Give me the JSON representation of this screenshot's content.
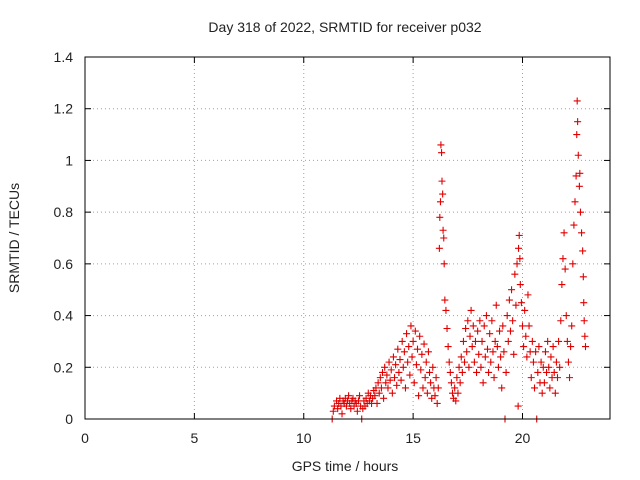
{
  "chart_data": {
    "type": "scatter",
    "title": "Day 318 of 2022, SRMTID for receiver p032",
    "xlabel": "GPS time / hours",
    "ylabel": "SRMTID / TECUs",
    "xlim": [
      0,
      24
    ],
    "ylim": [
      0,
      1.4
    ],
    "x_ticks": [
      "0",
      "5",
      "10",
      "15",
      "20"
    ],
    "y_ticks": [
      "0",
      "0.2",
      "0.4",
      "0.6",
      "0.8",
      "1",
      "1.2",
      "1.4"
    ],
    "grid": true,
    "marker": "+",
    "marker_color": "#e00000",
    "axis_color": "#000000",
    "grid_color": "#a0a0a0",
    "series": [
      {
        "name": "SRMTID",
        "points": [
          [
            11.3,
            0.0
          ],
          [
            11.35,
            0.03
          ],
          [
            11.4,
            0.05
          ],
          [
            11.5,
            0.07
          ],
          [
            11.55,
            0.04
          ],
          [
            11.6,
            0.06
          ],
          [
            11.65,
            0.08
          ],
          [
            11.7,
            0.05
          ],
          [
            11.75,
            0.02
          ],
          [
            11.8,
            0.07
          ],
          [
            11.85,
            0.06
          ],
          [
            11.9,
            0.08
          ],
          [
            11.95,
            0.05
          ],
          [
            12.0,
            0.07
          ],
          [
            12.05,
            0.09
          ],
          [
            12.1,
            0.06
          ],
          [
            12.15,
            0.04
          ],
          [
            12.2,
            0.07
          ],
          [
            12.25,
            0.08
          ],
          [
            12.3,
            0.05
          ],
          [
            12.35,
            0.07
          ],
          [
            12.4,
            0.06
          ],
          [
            12.45,
            0.03
          ],
          [
            12.5,
            0.07
          ],
          [
            12.55,
            0.09
          ],
          [
            12.6,
            0.05
          ],
          [
            12.65,
            0.0
          ],
          [
            12.7,
            0.04
          ],
          [
            12.75,
            0.07
          ],
          [
            12.8,
            0.05
          ],
          [
            12.85,
            0.08
          ],
          [
            12.9,
            0.06
          ],
          [
            12.95,
            0.1
          ],
          [
            13.0,
            0.07
          ],
          [
            13.05,
            0.09
          ],
          [
            13.1,
            0.06
          ],
          [
            13.15,
            0.08
          ],
          [
            13.2,
            0.11
          ],
          [
            13.25,
            0.09
          ],
          [
            13.3,
            0.12
          ],
          [
            13.35,
            0.06
          ],
          [
            13.4,
            0.14
          ],
          [
            13.45,
            0.1
          ],
          [
            13.5,
            0.16
          ],
          [
            13.55,
            0.12
          ],
          [
            13.6,
            0.18
          ],
          [
            13.65,
            0.08
          ],
          [
            13.7,
            0.2
          ],
          [
            13.75,
            0.14
          ],
          [
            13.8,
            0.17
          ],
          [
            13.85,
            0.12
          ],
          [
            13.9,
            0.22
          ],
          [
            13.95,
            0.15
          ],
          [
            14.0,
            0.19
          ],
          [
            14.05,
            0.1
          ],
          [
            14.1,
            0.24
          ],
          [
            14.15,
            0.16
          ],
          [
            14.2,
            0.21
          ],
          [
            14.25,
            0.13
          ],
          [
            14.3,
            0.27
          ],
          [
            14.35,
            0.18
          ],
          [
            14.4,
            0.23
          ],
          [
            14.45,
            0.15
          ],
          [
            14.5,
            0.3
          ],
          [
            14.55,
            0.2
          ],
          [
            14.6,
            0.26
          ],
          [
            14.65,
            0.12
          ],
          [
            14.7,
            0.33
          ],
          [
            14.75,
            0.22
          ],
          [
            14.8,
            0.28
          ],
          [
            14.85,
            0.17
          ],
          [
            14.9,
            0.36
          ],
          [
            14.95,
            0.24
          ],
          [
            15.0,
            0.3
          ],
          [
            15.05,
            0.14
          ],
          [
            15.1,
            0.34
          ],
          [
            15.15,
            0.21
          ],
          [
            15.2,
            0.27
          ],
          [
            15.25,
            0.09
          ],
          [
            15.3,
            0.32
          ],
          [
            15.35,
            0.19
          ],
          [
            15.4,
            0.25
          ],
          [
            15.45,
            0.12
          ],
          [
            15.5,
            0.29
          ],
          [
            15.55,
            0.16
          ],
          [
            15.6,
            0.22
          ],
          [
            15.65,
            0.1
          ],
          [
            15.7,
            0.26
          ],
          [
            15.75,
            0.18
          ],
          [
            15.8,
            0.14
          ],
          [
            15.85,
            0.08
          ],
          [
            15.9,
            0.2
          ],
          [
            15.95,
            0.12
          ],
          [
            16.0,
            0.09
          ],
          [
            16.05,
            0.16
          ],
          [
            16.1,
            0.06
          ],
          [
            16.15,
            0.12
          ],
          [
            16.2,
            0.66
          ],
          [
            16.22,
            0.78
          ],
          [
            16.25,
            0.84
          ],
          [
            16.27,
            1.06
          ],
          [
            16.3,
            1.03
          ],
          [
            16.32,
            0.92
          ],
          [
            16.35,
            0.87
          ],
          [
            16.37,
            0.73
          ],
          [
            16.4,
            0.7
          ],
          [
            16.42,
            0.6
          ],
          [
            16.45,
            0.46
          ],
          [
            16.5,
            0.42
          ],
          [
            16.55,
            0.35
          ],
          [
            16.6,
            0.28
          ],
          [
            16.65,
            0.22
          ],
          [
            16.7,
            0.18
          ],
          [
            16.75,
            0.14
          ],
          [
            16.8,
            0.1
          ],
          [
            16.85,
            0.08
          ],
          [
            16.9,
            0.12
          ],
          [
            16.95,
            0.07
          ],
          [
            17.0,
            0.16
          ],
          [
            17.05,
            0.1
          ],
          [
            17.1,
            0.2
          ],
          [
            17.15,
            0.14
          ],
          [
            17.2,
            0.24
          ],
          [
            17.25,
            0.18
          ],
          [
            17.3,
            0.3
          ],
          [
            17.35,
            0.22
          ],
          [
            17.4,
            0.35
          ],
          [
            17.45,
            0.26
          ],
          [
            17.5,
            0.38
          ],
          [
            17.55,
            0.2
          ],
          [
            17.6,
            0.32
          ],
          [
            17.65,
            0.42
          ],
          [
            17.7,
            0.28
          ],
          [
            17.75,
            0.36
          ],
          [
            17.8,
            0.22
          ],
          [
            17.85,
            0.3
          ],
          [
            17.9,
            0.18
          ],
          [
            17.95,
            0.34
          ],
          [
            18.0,
            0.25
          ],
          [
            18.05,
            0.38
          ],
          [
            18.1,
            0.2
          ],
          [
            18.15,
            0.3
          ],
          [
            18.2,
            0.14
          ],
          [
            18.25,
            0.36
          ],
          [
            18.3,
            0.24
          ],
          [
            18.35,
            0.4
          ],
          [
            18.4,
            0.27
          ],
          [
            18.45,
            0.18
          ],
          [
            18.5,
            0.33
          ],
          [
            18.55,
            0.22
          ],
          [
            18.6,
            0.38
          ],
          [
            18.65,
            0.26
          ],
          [
            18.7,
            0.16
          ],
          [
            18.75,
            0.3
          ],
          [
            18.8,
            0.44
          ],
          [
            18.85,
            0.28
          ],
          [
            18.9,
            0.2
          ],
          [
            18.95,
            0.34
          ],
          [
            19.0,
            0.24
          ],
          [
            19.05,
            0.12
          ],
          [
            19.1,
            0.36
          ],
          [
            19.15,
            0.26
          ],
          [
            19.2,
            0.0
          ],
          [
            19.25,
            0.18
          ],
          [
            19.3,
            0.4
          ],
          [
            19.35,
            0.3
          ],
          [
            19.4,
            0.46
          ],
          [
            19.45,
            0.34
          ],
          [
            19.5,
            0.5
          ],
          [
            19.55,
            0.38
          ],
          [
            19.6,
            0.25
          ],
          [
            19.65,
            0.56
          ],
          [
            19.7,
            0.44
          ],
          [
            19.75,
            0.6
          ],
          [
            19.8,
            0.05
          ],
          [
            19.82,
            0.66
          ],
          [
            19.85,
            0.71
          ],
          [
            19.88,
            0.62
          ],
          [
            19.9,
            0.52
          ],
          [
            19.95,
            0.45
          ],
          [
            20.0,
            0.36
          ],
          [
            20.05,
            0.28
          ],
          [
            20.1,
            0.42
          ],
          [
            20.15,
            0.32
          ],
          [
            20.2,
            0.24
          ],
          [
            20.25,
            0.48
          ],
          [
            20.3,
            0.36
          ],
          [
            20.35,
            0.26
          ],
          [
            20.4,
            0.16
          ],
          [
            20.45,
            0.3
          ],
          [
            20.5,
            0.22
          ],
          [
            20.55,
            0.12
          ],
          [
            20.6,
            0.26
          ],
          [
            20.65,
            0.0
          ],
          [
            20.7,
            0.18
          ],
          [
            20.75,
            0.28
          ],
          [
            20.8,
            0.14
          ],
          [
            20.85,
            0.22
          ],
          [
            20.9,
            0.1
          ],
          [
            20.95,
            0.2
          ],
          [
            21.0,
            0.14
          ],
          [
            21.05,
            0.26
          ],
          [
            21.1,
            0.18
          ],
          [
            21.15,
            0.3
          ],
          [
            21.2,
            0.2
          ],
          [
            21.25,
            0.12
          ],
          [
            21.3,
            0.24
          ],
          [
            21.35,
            0.16
          ],
          [
            21.4,
            0.28
          ],
          [
            21.45,
            0.18
          ],
          [
            21.5,
            0.1
          ],
          [
            21.55,
            0.22
          ],
          [
            21.6,
            0.16
          ],
          [
            21.65,
            0.3
          ],
          [
            21.7,
            0.2
          ],
          [
            21.75,
            0.38
          ],
          [
            21.8,
            0.52
          ],
          [
            21.85,
            0.62
          ],
          [
            21.9,
            0.72
          ],
          [
            21.95,
            0.58
          ],
          [
            22.0,
            0.4
          ],
          [
            22.05,
            0.3
          ],
          [
            22.1,
            0.22
          ],
          [
            22.15,
            0.16
          ],
          [
            22.2,
            0.28
          ],
          [
            22.25,
            0.36
          ],
          [
            22.3,
            0.6
          ],
          [
            22.35,
            0.75
          ],
          [
            22.4,
            0.84
          ],
          [
            22.45,
            0.94
          ],
          [
            22.48,
            1.1
          ],
          [
            22.5,
            1.23
          ],
          [
            22.52,
            1.15
          ],
          [
            22.55,
            1.02
          ],
          [
            22.6,
            0.9
          ],
          [
            22.62,
            0.95
          ],
          [
            22.65,
            0.8
          ],
          [
            22.7,
            0.72
          ],
          [
            22.75,
            0.65
          ],
          [
            22.78,
            0.55
          ],
          [
            22.8,
            0.45
          ],
          [
            22.82,
            0.38
          ],
          [
            22.85,
            0.32
          ],
          [
            22.88,
            0.28
          ]
        ]
      }
    ]
  }
}
